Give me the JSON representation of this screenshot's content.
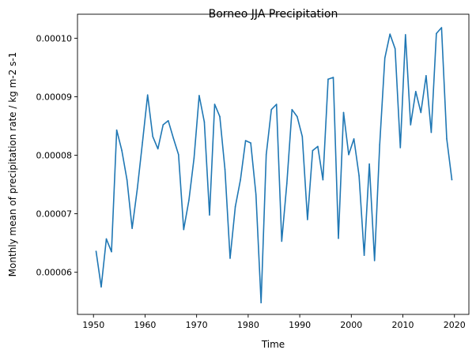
{
  "chart_data": {
    "type": "line",
    "title": "Borneo JJA Precipitation",
    "xlabel": "Time",
    "ylabel": "Monthly mean of precipitation rate / kg m-2 s-1",
    "xlim": [
      1946.9,
      2022.8
    ],
    "ylim": [
      5.28e-05,
      0.0001041
    ],
    "xticks": [
      1950,
      1960,
      1970,
      1980,
      1990,
      2000,
      2010,
      2020
    ],
    "xtick_labels": [
      "1950",
      "1960",
      "1970",
      "1980",
      "1990",
      "2000",
      "2010",
      "2020"
    ],
    "yticks": [
      6e-05,
      7e-05,
      8e-05,
      9e-05,
      0.0001
    ],
    "ytick_labels": [
      "0.00006",
      "0.00007",
      "0.00008",
      "0.00009",
      "0.00010"
    ],
    "grid": false,
    "line_color": "#1f77b4",
    "series": [
      {
        "name": "Borneo JJA Precipitation",
        "x": [
          1950.5,
          1951.5,
          1952.5,
          1953.5,
          1954.5,
          1955.5,
          1956.5,
          1957.5,
          1958.5,
          1959.5,
          1960.5,
          1961.5,
          1962.5,
          1963.5,
          1964.5,
          1965.5,
          1966.5,
          1967.5,
          1968.5,
          1969.5,
          1970.5,
          1971.5,
          1972.5,
          1973.5,
          1974.5,
          1975.5,
          1976.5,
          1977.5,
          1978.5,
          1979.5,
          1980.5,
          1981.5,
          1982.5,
          1983.5,
          1984.5,
          1985.5,
          1986.5,
          1987.5,
          1988.5,
          1989.5,
          1990.5,
          1991.5,
          1992.5,
          1993.5,
          1994.5,
          1995.5,
          1996.5,
          1997.5,
          1998.5,
          1999.5,
          2000.5,
          2001.5,
          2002.5,
          2003.5,
          2004.5,
          2005.5,
          2006.5,
          2007.5,
          2008.5,
          2009.5,
          2010.5,
          2011.5,
          2012.5,
          2013.5,
          2014.5,
          2015.5,
          2016.5,
          2017.5,
          2018.5,
          2019.5
        ],
        "values_e5": [
          6.36,
          5.75,
          6.57,
          6.35,
          8.43,
          8.08,
          7.58,
          6.75,
          7.43,
          8.22,
          9.03,
          8.32,
          8.11,
          8.52,
          8.59,
          8.29,
          8.01,
          6.73,
          7.23,
          7.95,
          9.02,
          8.57,
          6.98,
          8.87,
          8.66,
          7.76,
          6.24,
          7.12,
          7.58,
          8.25,
          8.21,
          7.33,
          5.48,
          8.01,
          8.78,
          8.87,
          6.53,
          7.52,
          8.78,
          8.66,
          8.32,
          6.9,
          8.08,
          8.15,
          7.58,
          9.3,
          9.33,
          6.58,
          8.73,
          8.01,
          8.28,
          7.65,
          6.29,
          7.85,
          6.2,
          8.18,
          9.66,
          10.07,
          9.82,
          8.13,
          10.06,
          8.52,
          9.09,
          8.73,
          9.36,
          8.39,
          10.08,
          10.18,
          8.28,
          7.58
        ]
      }
    ]
  }
}
